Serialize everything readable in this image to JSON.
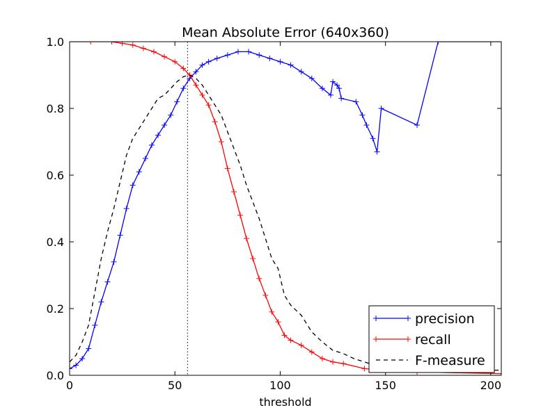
{
  "chart_data": {
    "type": "line",
    "title": "Mean Absolute Error (640x360)",
    "xlabel": "threshold",
    "ylabel": "",
    "xlim": [
      0,
      205
    ],
    "ylim": [
      0.0,
      1.0
    ],
    "xticks": [
      0,
      50,
      100,
      150,
      200
    ],
    "yticks": [
      0.0,
      0.2,
      0.4,
      0.6,
      0.8,
      1.0
    ],
    "xtick_labels": [
      "0",
      "50",
      "100",
      "150",
      "200"
    ],
    "ytick_labels": [
      "0.0",
      "0.2",
      "0.4",
      "0.6",
      "0.8",
      "1.0"
    ],
    "grid": false,
    "legend_position": "lower-right",
    "vline": {
      "x": 56,
      "style": "dotted",
      "color": "#000000"
    },
    "series": [
      {
        "name": "precision",
        "color": "#0000ff",
        "style": "solid",
        "marker": "+",
        "points": [
          [
            0,
            0.02
          ],
          [
            3,
            0.03
          ],
          [
            6,
            0.05
          ],
          [
            9,
            0.08
          ],
          [
            12,
            0.15
          ],
          [
            15,
            0.22
          ],
          [
            18,
            0.28
          ],
          [
            21,
            0.34
          ],
          [
            24,
            0.42
          ],
          [
            27,
            0.5
          ],
          [
            30,
            0.57
          ],
          [
            33,
            0.61
          ],
          [
            36,
            0.65
          ],
          [
            39,
            0.69
          ],
          [
            42,
            0.72
          ],
          [
            45,
            0.75
          ],
          [
            48,
            0.78
          ],
          [
            51,
            0.82
          ],
          [
            54,
            0.86
          ],
          [
            57,
            0.89
          ],
          [
            60,
            0.91
          ],
          [
            63,
            0.93
          ],
          [
            66,
            0.94
          ],
          [
            70,
            0.95
          ],
          [
            75,
            0.96
          ],
          [
            80,
            0.97
          ],
          [
            85,
            0.97
          ],
          [
            90,
            0.96
          ],
          [
            95,
            0.95
          ],
          [
            100,
            0.94
          ],
          [
            105,
            0.93
          ],
          [
            110,
            0.91
          ],
          [
            115,
            0.89
          ],
          [
            120,
            0.86
          ],
          [
            124,
            0.84
          ],
          [
            125,
            0.88
          ],
          [
            127,
            0.87
          ],
          [
            128,
            0.86
          ],
          [
            129,
            0.83
          ],
          [
            136,
            0.82
          ],
          [
            139,
            0.78
          ],
          [
            141,
            0.75
          ],
          [
            144,
            0.71
          ],
          [
            146,
            0.67
          ],
          [
            148,
            0.8
          ],
          [
            165,
            0.75
          ],
          [
            175,
            1.0
          ],
          [
            205,
            1.0
          ]
        ]
      },
      {
        "name": "recall",
        "color": "#ff0000",
        "style": "solid",
        "marker": "+",
        "points": [
          [
            0,
            1.0
          ],
          [
            10,
            1.0
          ],
          [
            20,
            1.0
          ],
          [
            25,
            0.995
          ],
          [
            30,
            0.99
          ],
          [
            35,
            0.98
          ],
          [
            40,
            0.97
          ],
          [
            45,
            0.955
          ],
          [
            50,
            0.94
          ],
          [
            54,
            0.92
          ],
          [
            57,
            0.9
          ],
          [
            60,
            0.87
          ],
          [
            63,
            0.84
          ],
          [
            66,
            0.81
          ],
          [
            69,
            0.76
          ],
          [
            72,
            0.7
          ],
          [
            75,
            0.62
          ],
          [
            78,
            0.55
          ],
          [
            81,
            0.48
          ],
          [
            84,
            0.41
          ],
          [
            87,
            0.35
          ],
          [
            90,
            0.29
          ],
          [
            93,
            0.24
          ],
          [
            96,
            0.19
          ],
          [
            99,
            0.16
          ],
          [
            102,
            0.12
          ],
          [
            105,
            0.105
          ],
          [
            110,
            0.09
          ],
          [
            115,
            0.07
          ],
          [
            120,
            0.05
          ],
          [
            125,
            0.04
          ],
          [
            130,
            0.035
          ],
          [
            140,
            0.02
          ],
          [
            150,
            0.015
          ],
          [
            165,
            0.01
          ],
          [
            205,
            0.005
          ]
        ]
      },
      {
        "name": "F-measure",
        "color": "#000000",
        "style": "dashed",
        "marker": "",
        "points": [
          [
            0,
            0.04
          ],
          [
            3,
            0.06
          ],
          [
            6,
            0.1
          ],
          [
            9,
            0.15
          ],
          [
            12,
            0.25
          ],
          [
            15,
            0.35
          ],
          [
            18,
            0.43
          ],
          [
            21,
            0.5
          ],
          [
            24,
            0.58
          ],
          [
            27,
            0.66
          ],
          [
            30,
            0.71
          ],
          [
            33,
            0.74
          ],
          [
            36,
            0.77
          ],
          [
            39,
            0.8
          ],
          [
            42,
            0.83
          ],
          [
            45,
            0.84
          ],
          [
            48,
            0.86
          ],
          [
            51,
            0.88
          ],
          [
            54,
            0.895
          ],
          [
            57,
            0.9
          ],
          [
            60,
            0.89
          ],
          [
            63,
            0.87
          ],
          [
            66,
            0.84
          ],
          [
            69,
            0.81
          ],
          [
            72,
            0.78
          ],
          [
            75,
            0.73
          ],
          [
            78,
            0.68
          ],
          [
            81,
            0.63
          ],
          [
            84,
            0.57
          ],
          [
            87,
            0.52
          ],
          [
            90,
            0.47
          ],
          [
            93,
            0.41
          ],
          [
            96,
            0.35
          ],
          [
            99,
            0.32
          ],
          [
            102,
            0.24
          ],
          [
            105,
            0.21
          ],
          [
            110,
            0.18
          ],
          [
            115,
            0.13
          ],
          [
            120,
            0.1
          ],
          [
            125,
            0.075
          ],
          [
            130,
            0.065
          ],
          [
            135,
            0.05
          ],
          [
            140,
            0.04
          ],
          [
            145,
            0.03
          ],
          [
            150,
            0.025
          ],
          [
            165,
            0.02
          ],
          [
            205,
            0.015
          ]
        ]
      }
    ]
  }
}
